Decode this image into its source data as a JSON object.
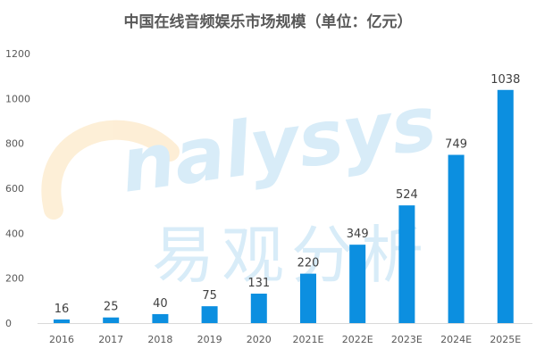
{
  "chart_data": {
    "type": "bar",
    "title": "中国在线音频娱乐市场规模（单位：亿元）",
    "categories": [
      "2016",
      "2017",
      "2018",
      "2019",
      "2020",
      "2021E",
      "2022E",
      "2023E",
      "2024E",
      "2025E"
    ],
    "values": [
      16,
      25,
      40,
      75,
      131,
      220,
      349,
      524,
      749,
      1038
    ],
    "ylim": [
      0,
      1200
    ],
    "yticks": [
      0,
      200,
      400,
      600,
      800,
      1000,
      1200
    ],
    "xlabel": "",
    "ylabel": "",
    "grid": false,
    "bar_color": "#0C8FE0",
    "data_labels": true
  },
  "watermark": {
    "text_latin": "analysys",
    "text_cn": "易观分析"
  }
}
